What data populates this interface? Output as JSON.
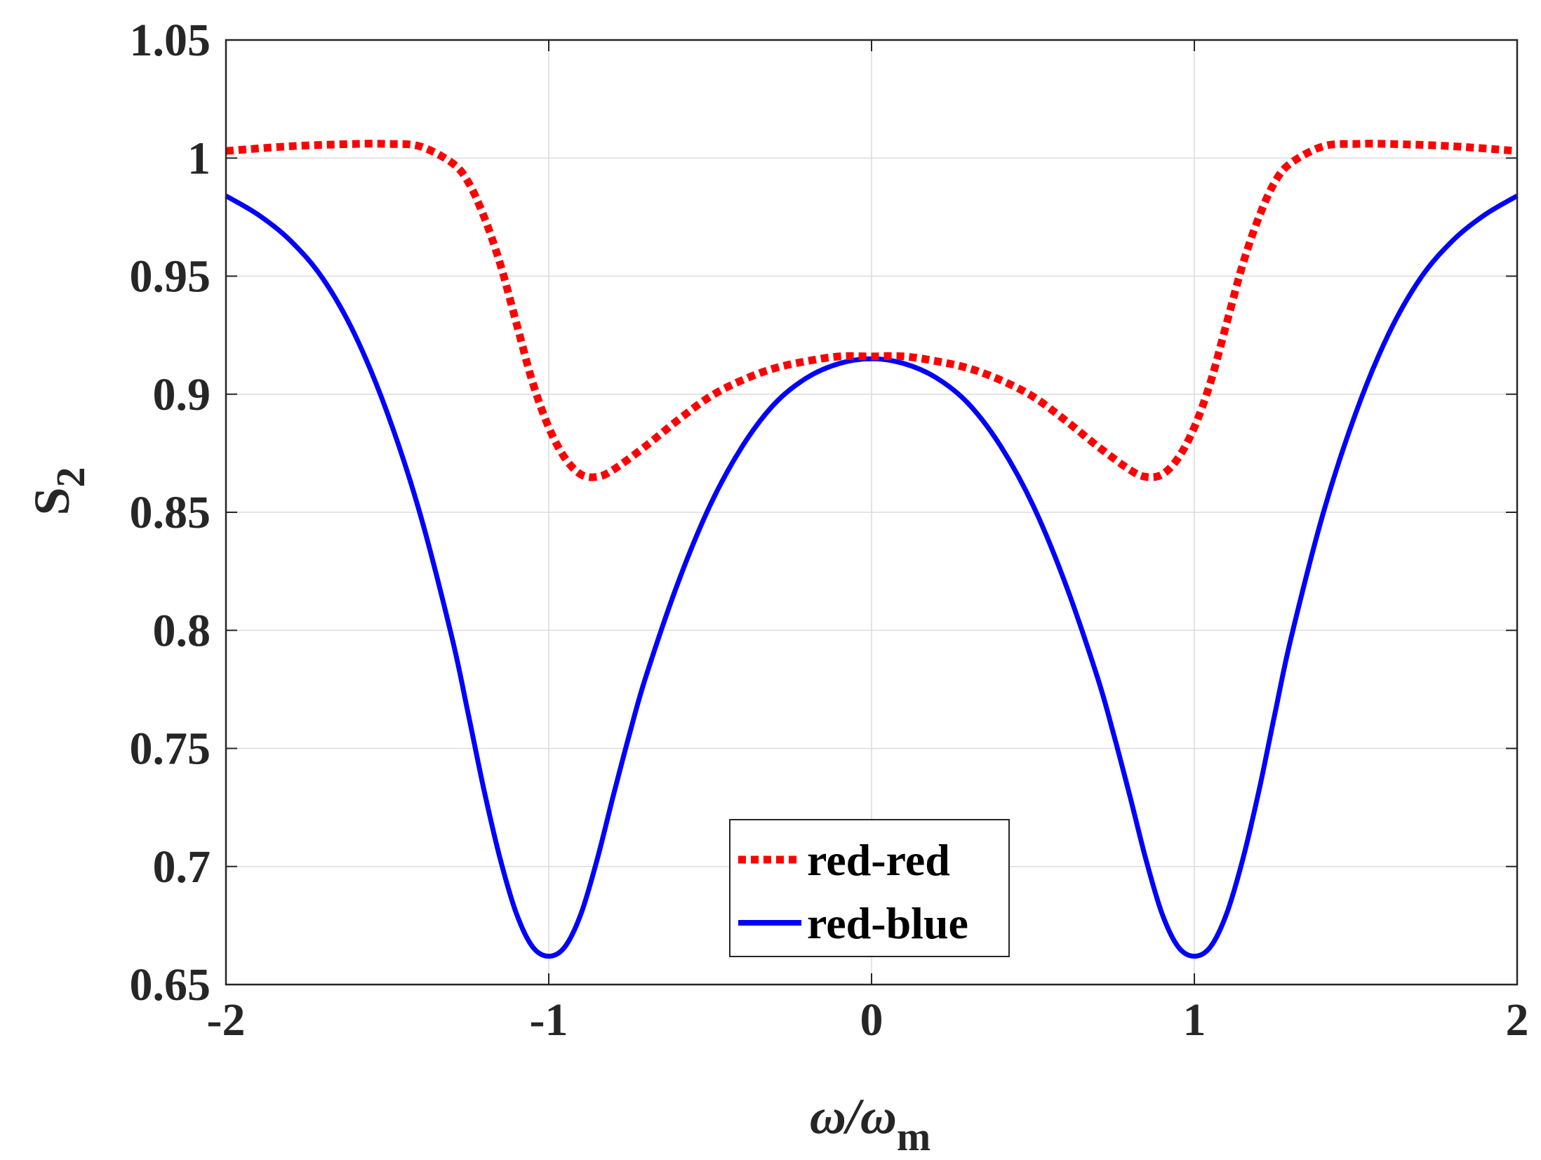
{
  "chart_data": {
    "type": "line",
    "title": "",
    "xlabel": "ω/ω",
    "xlabel_sub": "m",
    "ylabel": "S",
    "ylabel_sub": "2",
    "xlim": [
      -2,
      2
    ],
    "ylim": [
      0.65,
      1.05
    ],
    "xticks": [
      -2,
      -1,
      0,
      1,
      2
    ],
    "xtick_labels": [
      "-2",
      "-1",
      "0",
      "1",
      "2"
    ],
    "yticks": [
      0.65,
      0.7,
      0.75,
      0.8,
      0.85,
      0.9,
      0.95,
      1,
      1.05
    ],
    "ytick_labels": [
      "0.65",
      "0.7",
      "0.75",
      "0.8",
      "0.85",
      "0.9",
      "0.95",
      "1",
      "1.05"
    ],
    "grid": true,
    "legend_position": "bottom-center",
    "series": [
      {
        "name": "red-red",
        "color": "#ff0000",
        "style": "dotted",
        "x": [
          -2.0,
          -1.8,
          -1.6,
          -1.5,
          -1.4,
          -1.3,
          -1.25,
          -1.2,
          -1.15,
          -1.1,
          -1.05,
          -1.0,
          -0.95,
          -0.9,
          -0.85,
          -0.8,
          -0.7,
          -0.6,
          -0.5,
          -0.4,
          -0.3,
          -0.2,
          -0.1,
          0.0,
          0.1,
          0.2,
          0.3,
          0.4,
          0.5,
          0.6,
          0.7,
          0.8,
          0.85,
          0.9,
          0.95,
          1.0,
          1.05,
          1.1,
          1.15,
          1.2,
          1.25,
          1.3,
          1.4,
          1.5,
          1.6,
          1.8,
          2.0
        ],
        "y": [
          1.003,
          1.005,
          1.006,
          1.006,
          1.005,
          0.998,
          0.99,
          0.975,
          0.955,
          0.93,
          0.905,
          0.886,
          0.873,
          0.866,
          0.865,
          0.868,
          0.878,
          0.889,
          0.899,
          0.906,
          0.911,
          0.914,
          0.916,
          0.916,
          0.916,
          0.914,
          0.911,
          0.906,
          0.899,
          0.889,
          0.878,
          0.868,
          0.865,
          0.866,
          0.873,
          0.886,
          0.905,
          0.93,
          0.955,
          0.975,
          0.99,
          0.998,
          1.005,
          1.006,
          1.006,
          1.005,
          1.003
        ]
      },
      {
        "name": "red-blue",
        "color": "#0000ff",
        "style": "solid",
        "x": [
          -2.0,
          -1.9,
          -1.8,
          -1.7,
          -1.6,
          -1.5,
          -1.4,
          -1.3,
          -1.25,
          -1.2,
          -1.15,
          -1.1,
          -1.05,
          -1.0,
          -0.95,
          -0.9,
          -0.85,
          -0.8,
          -0.75,
          -0.7,
          -0.6,
          -0.5,
          -0.4,
          -0.3,
          -0.2,
          -0.1,
          0.0,
          0.1,
          0.2,
          0.3,
          0.4,
          0.5,
          0.6,
          0.7,
          0.75,
          0.8,
          0.85,
          0.9,
          0.95,
          1.0,
          1.05,
          1.1,
          1.15,
          1.2,
          1.25,
          1.3,
          1.4,
          1.5,
          1.6,
          1.7,
          1.8,
          1.9,
          2.0
        ],
        "y": [
          0.984,
          0.976,
          0.965,
          0.949,
          0.925,
          0.892,
          0.85,
          0.797,
          0.765,
          0.732,
          0.703,
          0.68,
          0.666,
          0.662,
          0.666,
          0.68,
          0.703,
          0.73,
          0.756,
          0.78,
          0.82,
          0.853,
          0.878,
          0.896,
          0.907,
          0.913,
          0.915,
          0.913,
          0.907,
          0.896,
          0.878,
          0.853,
          0.82,
          0.78,
          0.756,
          0.73,
          0.703,
          0.68,
          0.666,
          0.662,
          0.666,
          0.68,
          0.703,
          0.732,
          0.765,
          0.797,
          0.85,
          0.892,
          0.925,
          0.949,
          0.965,
          0.976,
          0.984
        ]
      }
    ]
  }
}
